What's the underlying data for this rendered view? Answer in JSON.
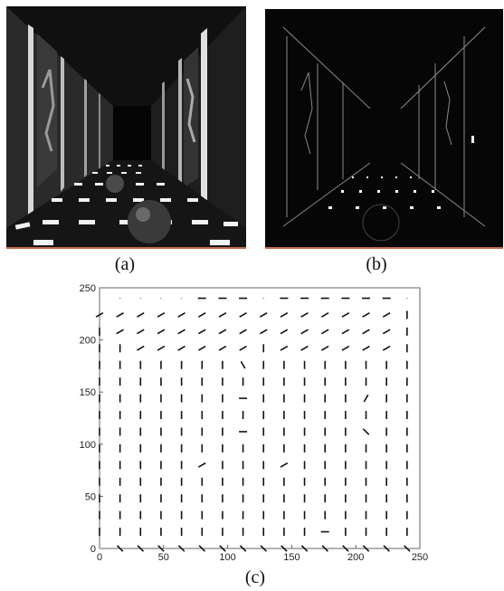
{
  "captions": {
    "a": "(a)",
    "b": "(b)",
    "c": "(c)"
  },
  "panel_a": {
    "description_name": "rendered-corridor-image"
  },
  "panel_b": {
    "description_name": "edge-map-corridor-image"
  },
  "chart_data": {
    "type": "scatter",
    "mark": "orientation-field",
    "xlim": [
      0,
      250
    ],
    "ylim": [
      0,
      250
    ],
    "xticks": [
      0,
      50,
      100,
      150,
      200,
      250
    ],
    "yticks": [
      0,
      50,
      100,
      150,
      200,
      250
    ],
    "grid": false,
    "spacing": 16,
    "grid_x": [
      0,
      16,
      32,
      48,
      64,
      80,
      96,
      112,
      128,
      144,
      160,
      176,
      192,
      208,
      224,
      240
    ],
    "grid_y": [
      0,
      16,
      32,
      48,
      64,
      80,
      96,
      112,
      128,
      144,
      160,
      176,
      192,
      208,
      224,
      240
    ],
    "rows": [
      {
        "y": 240,
        "angles": [
          null,
          null,
          null,
          null,
          null,
          0,
          0,
          0,
          null,
          0,
          0,
          0,
          0,
          0,
          0,
          null
        ]
      },
      {
        "y": 224,
        "angles": [
          30,
          30,
          30,
          30,
          30,
          30,
          30,
          30,
          30,
          30,
          30,
          30,
          30,
          30,
          30,
          90
        ]
      },
      {
        "y": 208,
        "angles": [
          90,
          30,
          30,
          30,
          30,
          30,
          30,
          30,
          30,
          30,
          30,
          30,
          30,
          30,
          30,
          90
        ]
      },
      {
        "y": 192,
        "angles": [
          90,
          90,
          30,
          30,
          30,
          30,
          30,
          30,
          90,
          30,
          30,
          30,
          30,
          30,
          30,
          90
        ]
      },
      {
        "y": 176,
        "angles": [
          90,
          90,
          90,
          90,
          90,
          90,
          90,
          -60,
          90,
          90,
          90,
          90,
          90,
          90,
          90,
          90
        ]
      },
      {
        "y": 160,
        "angles": [
          90,
          90,
          90,
          90,
          90,
          90,
          90,
          90,
          90,
          90,
          90,
          90,
          90,
          90,
          90,
          90
        ]
      },
      {
        "y": 144,
        "angles": [
          90,
          90,
          90,
          90,
          90,
          90,
          90,
          0,
          90,
          90,
          90,
          90,
          90,
          60,
          90,
          90
        ]
      },
      {
        "y": 128,
        "angles": [
          90,
          90,
          90,
          90,
          90,
          90,
          90,
          90,
          90,
          90,
          90,
          90,
          90,
          90,
          90,
          90
        ]
      },
      {
        "y": 112,
        "angles": [
          90,
          90,
          90,
          90,
          90,
          90,
          90,
          0,
          90,
          90,
          90,
          90,
          90,
          -45,
          90,
          90
        ]
      },
      {
        "y": 96,
        "angles": [
          90,
          90,
          90,
          90,
          90,
          90,
          90,
          90,
          90,
          90,
          90,
          90,
          90,
          90,
          90,
          90
        ]
      },
      {
        "y": 80,
        "angles": [
          90,
          90,
          90,
          90,
          90,
          30,
          90,
          90,
          90,
          30,
          90,
          90,
          90,
          90,
          90,
          90
        ]
      },
      {
        "y": 64,
        "angles": [
          90,
          90,
          90,
          90,
          90,
          90,
          90,
          90,
          90,
          90,
          90,
          90,
          90,
          90,
          90,
          90
        ]
      },
      {
        "y": 48,
        "angles": [
          90,
          90,
          90,
          90,
          90,
          90,
          90,
          90,
          90,
          90,
          90,
          90,
          90,
          90,
          90,
          90
        ]
      },
      {
        "y": 32,
        "angles": [
          90,
          90,
          90,
          90,
          90,
          90,
          90,
          90,
          90,
          90,
          90,
          90,
          90,
          90,
          90,
          90
        ]
      },
      {
        "y": 16,
        "angles": [
          90,
          90,
          90,
          90,
          90,
          90,
          90,
          90,
          90,
          90,
          90,
          0,
          90,
          90,
          90,
          90
        ]
      },
      {
        "y": 0,
        "angles": [
          null,
          -45,
          -45,
          -45,
          -45,
          -45,
          -45,
          -45,
          -45,
          -45,
          -45,
          -45,
          -45,
          -45,
          -45,
          -45
        ]
      }
    ]
  }
}
